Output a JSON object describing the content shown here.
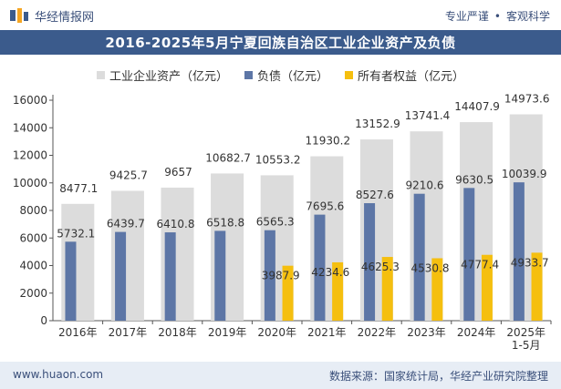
{
  "brand": {
    "name": "华经情报网",
    "logo_icon": "huajing-logo-icon"
  },
  "header_tags": [
    "专业严谨",
    "客观科学"
  ],
  "footer": {
    "website": "www.huaon.com",
    "source": "数据来源：国家统计局，华经产业研究院整理"
  },
  "colors": {
    "assets": "#dcdcdc",
    "liabilities": "#5d76a6",
    "equity": "#f5bf0f",
    "title_bg": "#3b5b8c",
    "footer_bg": "#e7edf5"
  },
  "chart_data": {
    "type": "bar",
    "title": "2016-2025年5月宁夏回族自治区工业企业资产及负债",
    "categories": [
      "2016年",
      "2017年",
      "2018年",
      "2019年",
      "2020年",
      "2021年",
      "2022年",
      "2023年",
      "2024年",
      "2025年\n1-5月"
    ],
    "series": [
      {
        "name": "工业企业资产（亿元）",
        "values": [
          8477.1,
          9425.7,
          9657,
          10682.7,
          10553.2,
          11930.2,
          13152.9,
          13741.4,
          14407.9,
          14973.6
        ]
      },
      {
        "name": "负债（亿元）",
        "values": [
          5732.1,
          6439.7,
          6410.8,
          6518.8,
          6565.3,
          7695.6,
          8527.6,
          9210.6,
          9630.5,
          10039.9
        ]
      },
      {
        "name": "所有者权益（亿元）",
        "values": [
          null,
          null,
          null,
          null,
          3987.9,
          4234.6,
          4625.3,
          4530.8,
          4777.4,
          4933.7
        ]
      }
    ],
    "value_labels": {
      "assets": [
        "8477.1",
        "9425.7",
        "9657",
        "10682.7",
        "10553.2",
        "11930.2",
        "13152.9",
        "13741.4",
        "14407.9",
        "14973.6"
      ],
      "liabilities": [
        "5732.1",
        "6439.7",
        "6410.8",
        "6518.8",
        "6565.3",
        "7695.6",
        "8527.6",
        "9210.6",
        "9630.5",
        "10039.9"
      ],
      "equity": [
        "",
        "",
        "",
        "",
        "3987.9",
        "4234.6",
        "4625.3",
        "4530.8",
        "4777.4",
        "4933.7"
      ]
    },
    "y_ticks": [
      "0",
      "2000",
      "4000",
      "6000",
      "8000",
      "10000",
      "12000",
      "14000",
      "16000"
    ],
    "ylim": [
      0,
      16000
    ],
    "grid": false,
    "legend_position": "top-center"
  }
}
